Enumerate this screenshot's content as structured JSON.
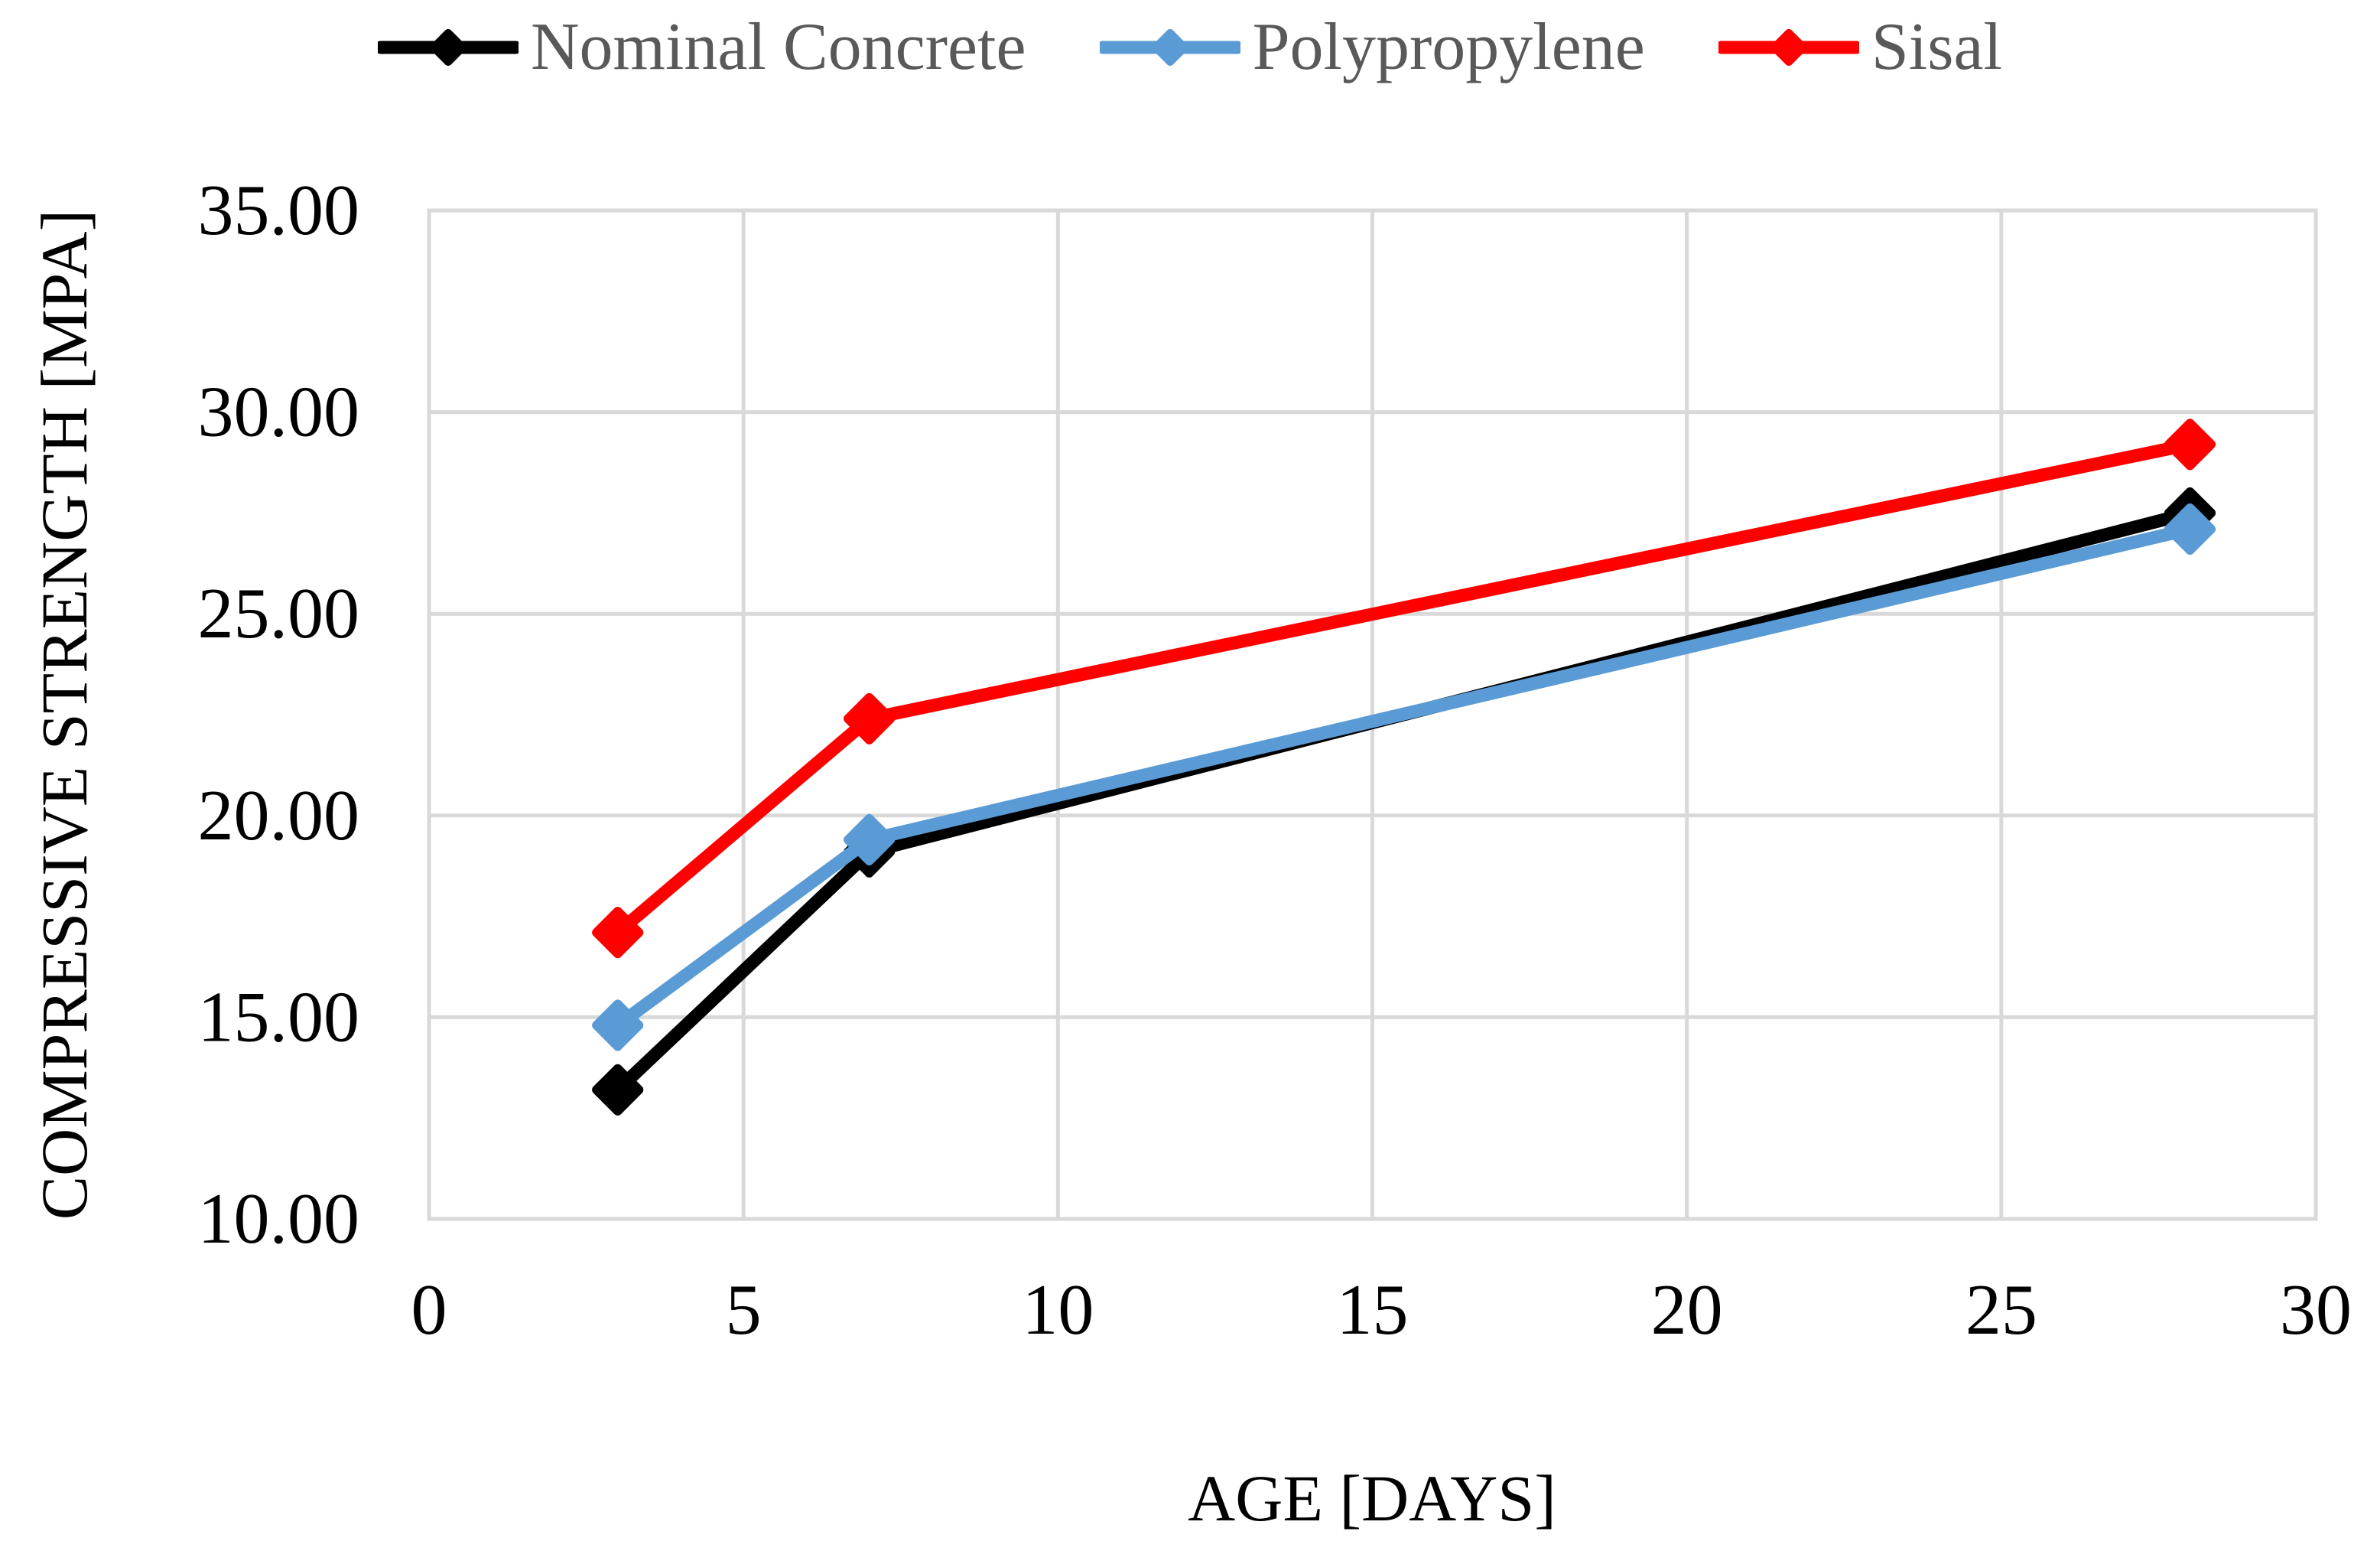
{
  "chart_data": {
    "type": "line",
    "title": "",
    "xlabel": "AGE [DAYS]",
    "ylabel": "COMPRESSIVE STRENGTH [MPA]",
    "x": [
      3,
      7,
      28
    ],
    "series": [
      {
        "name": "Nominal Concrete",
        "color": "#000000",
        "values": [
          13.2,
          19.1,
          27.5
        ]
      },
      {
        "name": "Polypropylene",
        "color": "#5B9BD5",
        "values": [
          14.8,
          19.4,
          27.1
        ]
      },
      {
        "name": "Sisal",
        "color": "#FF0000",
        "values": [
          17.1,
          22.4,
          29.2
        ]
      }
    ],
    "xlim": [
      0,
      30
    ],
    "ylim": [
      10,
      35
    ],
    "x_ticks": [
      0,
      5,
      10,
      15,
      20,
      25,
      30
    ],
    "x_tick_labels": [
      "0",
      "5",
      "10",
      "15",
      "20",
      "25",
      "30"
    ],
    "y_ticks": [
      10,
      15,
      20,
      25,
      30,
      35
    ],
    "y_tick_labels": [
      "10.00",
      "15.00",
      "20.00",
      "25.00",
      "30.00",
      "35.00"
    ],
    "grid": true,
    "legend_position": "top",
    "marker": "diamond",
    "colors": {
      "grid": "#D9D9D9",
      "legend_text": "#595959",
      "tick_text": "#000000"
    }
  }
}
